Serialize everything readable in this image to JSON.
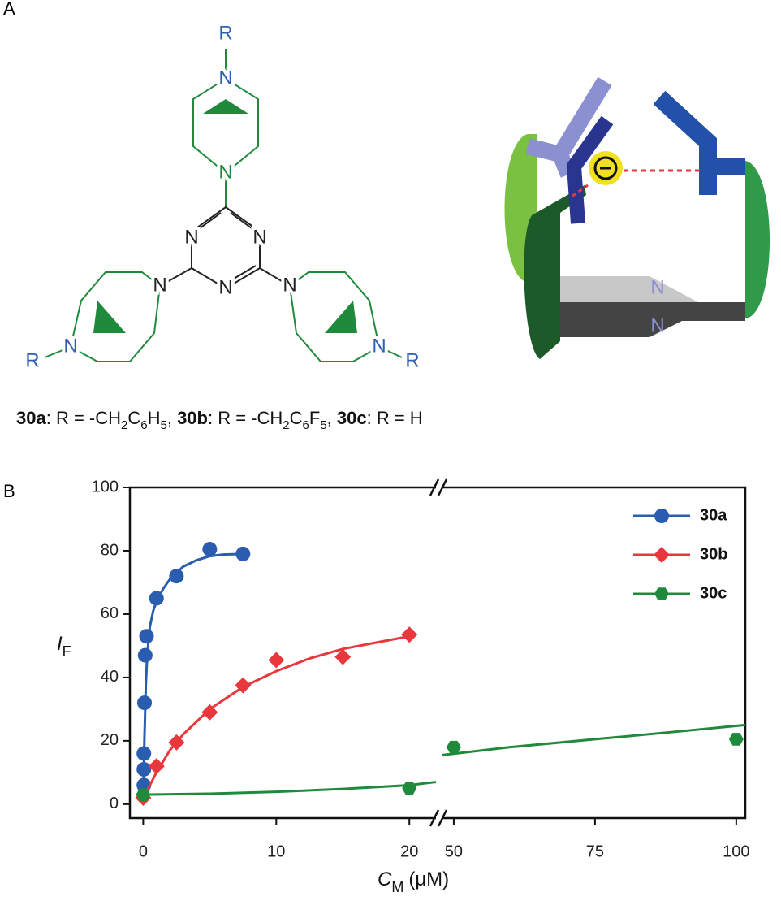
{
  "panel_labels": [
    "A",
    "B"
  ],
  "structure": {
    "atoms": [
      "R",
      "N",
      "N",
      "N",
      "N",
      "N",
      "N",
      "N",
      "N",
      "R",
      "N",
      "R"
    ]
  },
  "cartoon": {
    "labels": [
      "N",
      "N"
    ]
  },
  "caption": [
    {
      "text": "30a",
      "style": "bold"
    },
    {
      "text": ": R = -CH",
      "style": "normal"
    },
    {
      "text": "2",
      "style": "sub"
    },
    {
      "text": "C",
      "style": "normal"
    },
    {
      "text": "6",
      "style": "sub"
    },
    {
      "text": "H",
      "style": "normal"
    },
    {
      "text": "5",
      "style": "sub"
    },
    {
      "text": ", ",
      "style": "normal"
    },
    {
      "text": "30b",
      "style": "bold"
    },
    {
      "text": ": R = -CH",
      "style": "normal"
    },
    {
      "text": "2",
      "style": "sub"
    },
    {
      "text": "C",
      "style": "normal"
    },
    {
      "text": "6",
      "style": "sub"
    },
    {
      "text": "F",
      "style": "normal"
    },
    {
      "text": "5",
      "style": "sub"
    },
    {
      "text": ", ",
      "style": "normal"
    },
    {
      "text": "30c",
      "style": "bold"
    },
    {
      "text": ": R = H",
      "style": "normal"
    }
  ],
  "chart_data": {
    "type": "scatter",
    "ylabel": {
      "main": "I",
      "sub": "F"
    },
    "xlabel": {
      "main": "C",
      "sub": "M",
      "unit": "(μM)"
    },
    "xlim": [
      -1,
      22
    ],
    "x2lim": [
      48,
      101.6
    ],
    "ylim": [
      -4.4,
      100
    ],
    "xticks": [
      0,
      10,
      20
    ],
    "x2ticks": [
      50,
      75,
      100
    ],
    "yticks": [
      0,
      20,
      40,
      60,
      80,
      100
    ],
    "series": [
      {
        "name": "30a",
        "color": "#2a5db0",
        "marker": "circle",
        "x": [
          0.05,
          0.05,
          0.05,
          0.1,
          0.15,
          0.25,
          1,
          2.5,
          5,
          7.5
        ],
        "values": [
          6,
          11,
          16,
          32,
          47,
          53,
          65,
          72,
          80.5,
          79
        ],
        "fit_x": [
          0,
          0.1,
          0.2,
          0.3,
          0.5,
          0.75,
          1,
          1.5,
          2,
          3,
          4,
          5,
          6,
          7.5
        ],
        "fit_values": [
          3,
          22,
          38,
          47,
          56,
          61,
          64,
          68,
          71,
          75,
          77,
          78.3,
          78.8,
          79
        ]
      },
      {
        "name": "30b",
        "color": "#e8383d",
        "marker": "diamond",
        "x": [
          0,
          1,
          2.5,
          5,
          7.5,
          10,
          15,
          20
        ],
        "values": [
          2,
          12,
          19.5,
          29,
          37.5,
          45.5,
          46.5,
          53.5
        ],
        "fit_x": [
          0,
          1,
          2,
          3,
          5,
          7.5,
          10,
          12.5,
          15,
          17.5,
          20
        ],
        "fit_values": [
          2,
          10,
          17,
          22,
          30,
          37,
          42,
          46,
          49,
          51,
          53
        ]
      },
      {
        "name": "30c",
        "color": "#1f8a3c",
        "marker": "hexagon",
        "x": [
          0,
          20,
          50,
          100
        ],
        "values": [
          3,
          5,
          18,
          20.5
        ],
        "fit_x": [
          0,
          5,
          10,
          15,
          20,
          22,
          null,
          48,
          60,
          75,
          90,
          101.6
        ],
        "fit_values": [
          3,
          3.3,
          3.9,
          4.8,
          6,
          7,
          null,
          15.5,
          18,
          20.5,
          23,
          25
        ]
      }
    ]
  }
}
